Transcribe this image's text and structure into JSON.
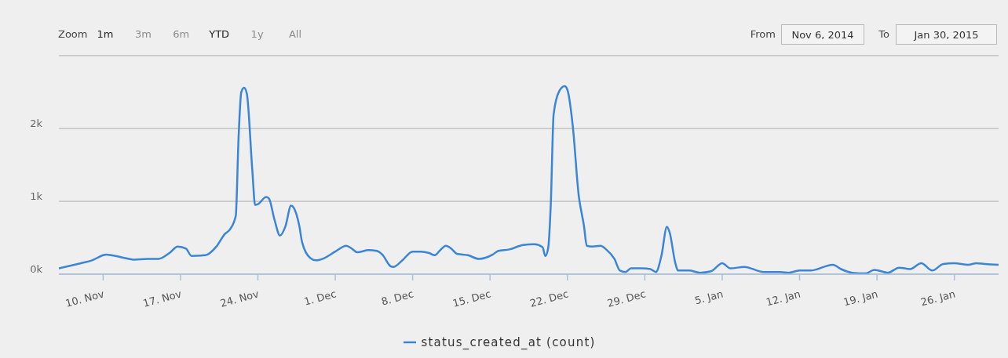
{
  "chart_data": {
    "type": "line",
    "x": [
      "2014-11-06T00:00",
      "2014-11-08T00:00",
      "2014-11-09T00:00",
      "2014-11-10T00:00",
      "2014-11-10T06:00",
      "2014-11-12T00:00",
      "2014-11-12T18:00",
      "2014-11-14T00:00",
      "2014-11-15T00:00",
      "2014-11-16T00:00",
      "2014-11-16T18:00",
      "2014-11-17T12:00",
      "2014-11-18T00:00",
      "2014-11-19T06:00",
      "2014-11-20T06:00",
      "2014-11-21T00:00",
      "2014-11-21T12:00",
      "2014-11-22T00:00",
      "2014-11-22T06:00",
      "2014-11-22T12:00",
      "2014-11-22T18:00",
      "2014-11-23T00:00",
      "2014-11-23T12:00",
      "2014-11-23T18:00",
      "2014-11-24T00:00",
      "2014-11-24T18:00",
      "2014-11-25T00:00",
      "2014-11-25T12:00",
      "2014-11-26T00:00",
      "2014-11-26T12:00",
      "2014-11-27T00:00",
      "2014-11-27T06:00",
      "2014-11-27T18:00",
      "2014-11-28T00:00",
      "2014-11-28T18:00",
      "2014-11-29T06:00",
      "2014-11-30T00:00",
      "2014-12-01T00:00",
      "2014-12-02T00:00",
      "2014-12-02T12:00",
      "2014-12-03T00:00",
      "2014-12-04T00:00",
      "2014-12-04T18:00",
      "2014-12-05T06:00",
      "2014-12-06T00:00",
      "2014-12-06T06:00",
      "2014-12-07T00:00",
      "2014-12-08T00:00",
      "2014-12-08T18:00",
      "2014-12-09T12:00",
      "2014-12-10T00:00",
      "2014-12-10T12:00",
      "2014-12-11T00:00",
      "2014-12-11T12:00",
      "2014-12-12T00:00",
      "2014-12-13T00:00",
      "2014-12-14T00:00",
      "2014-12-15T06:00",
      "2014-12-15T18:00",
      "2014-12-16T18:00",
      "2014-12-18T00:00",
      "2014-12-19T00:00",
      "2014-12-19T18:00",
      "2014-12-20T00:00",
      "2014-12-20T06:00",
      "2014-12-20T12:00",
      "2014-12-20T18:00",
      "2014-12-21T06:00",
      "2014-12-21T18:00",
      "2014-12-22T00:00",
      "2014-12-22T12:00",
      "2014-12-23T00:00",
      "2014-12-23T12:00",
      "2014-12-23T18:00",
      "2014-12-24T06:00",
      "2014-12-25T00:00",
      "2014-12-25T12:00",
      "2014-12-26T06:00",
      "2014-12-26T18:00",
      "2014-12-27T06:00",
      "2014-12-27T18:00",
      "2014-12-28T18:00",
      "2014-12-29T12:00",
      "2014-12-30T00:00",
      "2014-12-30T12:00",
      "2014-12-31T00:00",
      "2014-12-31T06:00",
      "2014-12-31T18:00",
      "2015-01-01T00:00",
      "2015-01-02T00:00",
      "2015-01-03T00:00",
      "2015-01-04T00:00",
      "2015-01-05T00:00",
      "2015-01-05T18:00",
      "2015-01-07T00:00",
      "2015-01-08T18:00",
      "2015-01-10T06:00",
      "2015-01-11T00:00",
      "2015-01-12T00:00",
      "2015-01-13T00:00",
      "2015-01-15T00:00",
      "2015-01-15T18:00",
      "2015-01-16T18:00",
      "2015-01-18T00:00",
      "2015-01-18T18:00",
      "2015-01-20T00:00",
      "2015-01-21T00:00",
      "2015-01-22T00:00",
      "2015-01-23T00:00",
      "2015-01-24T00:00",
      "2015-01-25T00:00",
      "2015-01-26T00:00",
      "2015-01-27T06:00",
      "2015-01-28T00:00",
      "2015-01-28T18:00",
      "2015-01-30T00:00"
    ],
    "series": [
      {
        "name": "status_created_at (count)",
        "color": "#3a85d6",
        "values": [
          80,
          150,
          190,
          260,
          270,
          220,
          200,
          210,
          210,
          290,
          380,
          350,
          250,
          260,
          380,
          550,
          620,
          800,
          1860,
          2500,
          2560,
          2480,
          1420,
          950,
          960,
          1060,
          1040,
          750,
          530,
          660,
          940,
          910,
          660,
          440,
          220,
          190,
          220,
          310,
          390,
          350,
          300,
          330,
          320,
          270,
          110,
          100,
          180,
          310,
          310,
          290,
          260,
          330,
          390,
          350,
          280,
          260,
          210,
          270,
          320,
          340,
          400,
          410,
          370,
          250,
          350,
          980,
          2190,
          2510,
          2580,
          2530,
          2010,
          1110,
          660,
          390,
          380,
          390,
          340,
          210,
          50,
          30,
          80,
          80,
          70,
          30,
          250,
          650,
          570,
          160,
          50,
          50,
          20,
          40,
          150,
          80,
          100,
          30,
          30,
          20,
          50,
          50,
          130,
          70,
          20,
          10,
          60,
          20,
          90,
          70,
          150,
          50,
          140,
          150,
          130,
          150,
          140,
          130
        ]
      }
    ],
    "xlim": [
      "2014-11-06",
      "2015-01-30"
    ],
    "xticks": [
      {
        "value": "2014-11-10",
        "label": "10. Nov"
      },
      {
        "value": "2014-11-17",
        "label": "17. Nov"
      },
      {
        "value": "2014-11-24",
        "label": "24. Nov"
      },
      {
        "value": "2014-12-01",
        "label": "1. Dec"
      },
      {
        "value": "2014-12-08",
        "label": "8. Dec"
      },
      {
        "value": "2014-12-15",
        "label": "15. Dec"
      },
      {
        "value": "2014-12-22",
        "label": "22. Dec"
      },
      {
        "value": "2014-12-29",
        "label": "29. Dec"
      },
      {
        "value": "2015-01-05",
        "label": "5. Jan"
      },
      {
        "value": "2015-01-12",
        "label": "12. Jan"
      },
      {
        "value": "2015-01-19",
        "label": "19. Jan"
      },
      {
        "value": "2015-01-26",
        "label": "26. Jan"
      }
    ],
    "ylim": [
      0,
      3000
    ],
    "yticks": [
      {
        "value": 0,
        "label": "0k"
      },
      {
        "value": 1000,
        "label": "1k"
      },
      {
        "value": 2000,
        "label": "2k"
      },
      {
        "value": 3000,
        "label": null
      }
    ],
    "grid": "y",
    "legend": "bottom",
    "marker": "none",
    "annotations": [
      "Zoom",
      "1m",
      "3m",
      "6m",
      "YTD",
      "1y",
      "All",
      "From",
      "Nov 6, 2014",
      "To",
      "Jan 30, 2015"
    ]
  }
}
